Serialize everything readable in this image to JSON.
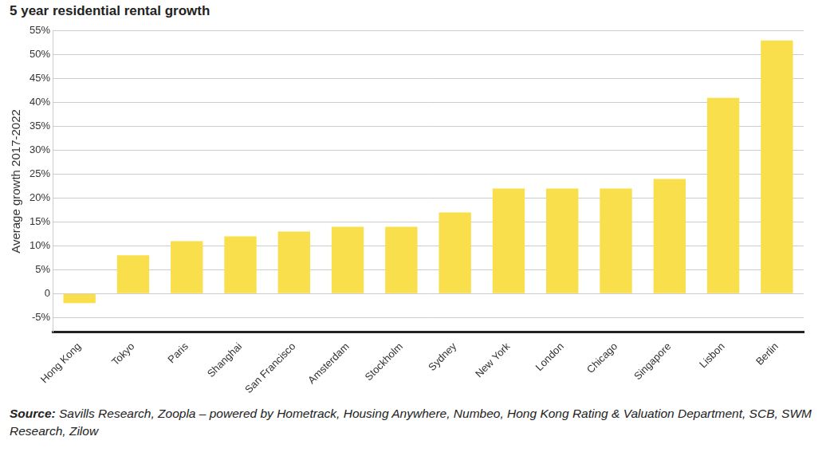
{
  "chart_data": {
    "type": "bar",
    "title": "5 year residential rental growth",
    "ylabel": "Average growth 2017-2022",
    "categories": [
      "Hong Kong",
      "Tokyo",
      "Paris",
      "Shanghai",
      "San Francisco",
      "Amsterdam",
      "Stockholm",
      "Sydney",
      "New York",
      "London",
      "Chicago",
      "Singapore",
      "Lisbon",
      "Berlin"
    ],
    "values": [
      -2,
      8,
      11,
      12,
      13,
      14,
      14,
      17,
      22,
      22,
      22,
      24,
      41,
      53
    ],
    "color": "#f9df4b",
    "ylim": [
      -8,
      55
    ],
    "yticks": [
      {
        "value": -5,
        "label": "-5%"
      },
      0,
      {
        "value": 5,
        "label": "5%"
      },
      {
        "value": 10,
        "label": "10%"
      },
      {
        "value": 15,
        "label": "15%"
      },
      {
        "value": 20,
        "label": "20%"
      },
      {
        "value": 25,
        "label": "25%"
      },
      {
        "value": 30,
        "label": "30%"
      },
      {
        "value": 35,
        "label": "35%"
      },
      {
        "value": 40,
        "label": "40%"
      },
      {
        "value": 45,
        "label": "45%"
      },
      {
        "value": 50,
        "label": "50%"
      },
      {
        "value": 55,
        "label": "55%"
      }
    ],
    "grid": true,
    "source": "Source: Savills Research, Zoopla – powered by Hometrack, Housing Anywhere, Numbeo, Hong Kong Rating & Valuation Department, SCB, SWM Research, Zilow"
  }
}
